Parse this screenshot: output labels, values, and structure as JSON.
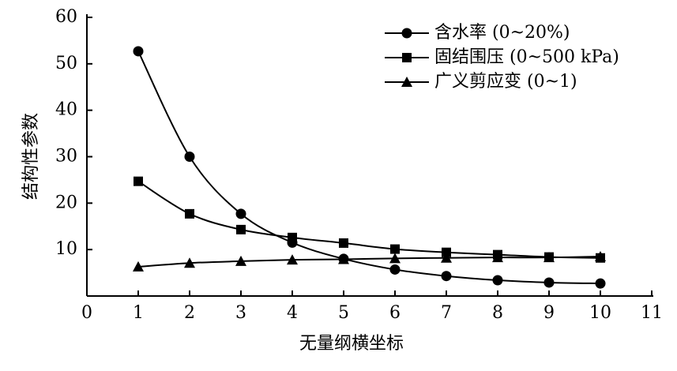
{
  "chart_data": {
    "type": "line",
    "x_label": "无量纲横坐标",
    "y_label": "结构性参数",
    "x": [
      1,
      2,
      3,
      4,
      5,
      6,
      7,
      8,
      9,
      10
    ],
    "series": [
      {
        "name": "含水率 (0~20%)",
        "color": "#000000",
        "marker": "circle",
        "values": [
          52.7,
          30.0,
          17.7,
          11.5,
          8.0,
          5.7,
          4.3,
          3.4,
          2.9,
          2.7
        ]
      },
      {
        "name": "固结围压 (0~500 kPa)",
        "color": "#000000",
        "marker": "square",
        "values": [
          24.7,
          17.7,
          14.3,
          12.6,
          11.4,
          10.1,
          9.4,
          8.9,
          8.4,
          8.2
        ]
      },
      {
        "name": "广义剪应变 (0~1)",
        "color": "#000000",
        "marker": "triangle",
        "values": [
          6.3,
          7.1,
          7.5,
          7.8,
          7.9,
          8.1,
          8.2,
          8.3,
          8.3,
          8.5
        ]
      }
    ],
    "xlim": [
      0,
      11
    ],
    "xticks": [
      0,
      1,
      2,
      3,
      4,
      5,
      6,
      7,
      8,
      9,
      10,
      11
    ],
    "ylim": [
      0,
      60
    ],
    "yticks": [
      10,
      20,
      30,
      40,
      50,
      60
    ],
    "smooth": true,
    "legend": "upper right",
    "grid": false
  }
}
